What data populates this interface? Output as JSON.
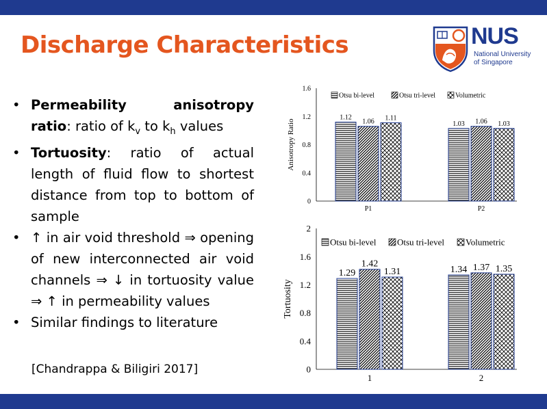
{
  "slide": {
    "title": "Discharge Characteristics",
    "logo": {
      "text": "NUS",
      "subtitle_line1": "National University",
      "subtitle_line2": "of Singapore"
    },
    "bullets": [
      {
        "bold": "Permeability anisotropy ratio",
        "rest": ": ratio of k",
        "sub1": "v",
        "mid": " to k",
        "sub2": "h",
        "end": " values"
      },
      {
        "bold": "Tortuosity",
        "rest": ": ratio of actual length of fluid flow to shortest distance from top to bottom of sample"
      },
      {
        "text": "↑ in air void threshold ⇒ opening of new interconnected air void channels ⇒ ↓ in tortuosity value ⇒ ↑ in permeability values"
      },
      {
        "text": "Similar findings to literature"
      }
    ],
    "citation": "[Chandrappa & Biligiri 2017]"
  },
  "chart_data": [
    {
      "type": "bar",
      "ylabel": "Anisotropy Ratio",
      "categories": [
        "P1",
        "P2"
      ],
      "series": [
        {
          "name": "Otsu bi-level",
          "values": [
            1.12,
            1.03
          ]
        },
        {
          "name": "Otsu tri-level",
          "values": [
            1.06,
            1.06
          ]
        },
        {
          "name": "Volumetric",
          "values": [
            1.11,
            1.03
          ]
        }
      ],
      "data_labels": [
        [
          "1.12",
          "1.06",
          "1.11"
        ],
        [
          "1.03",
          "1.06",
          "1.03"
        ]
      ],
      "yticks": [
        "0",
        "0.4",
        "0.8",
        "1.2",
        "1.6"
      ],
      "ylim": [
        0,
        1.6
      ],
      "legend": "top",
      "grid": false,
      "patterns": {
        "Otsu bi-level": "horizontal-lines",
        "Otsu tri-level": "diagonal-lines",
        "Volumetric": "crosshatch"
      }
    },
    {
      "type": "bar",
      "ylabel": "Tortuosity",
      "categories": [
        "1",
        "2"
      ],
      "series": [
        {
          "name": "Otsu bi-level",
          "values": [
            1.29,
            1.34
          ]
        },
        {
          "name": "Otsu tri-level",
          "values": [
            1.42,
            1.37
          ]
        },
        {
          "name": "Volumetric",
          "values": [
            1.31,
            1.35
          ]
        }
      ],
      "data_labels": [
        [
          "1.29",
          "1.42",
          "1.31"
        ],
        [
          "1.34",
          "1.37",
          "1.35"
        ]
      ],
      "yticks": [
        "0",
        "0.4",
        "0.8",
        "1.2",
        "1.6",
        "2"
      ],
      "ylim": [
        0,
        2
      ],
      "legend": "top",
      "grid": false,
      "patterns": {
        "Otsu bi-level": "horizontal-lines",
        "Otsu tri-level": "diagonal-lines",
        "Volumetric": "crosshatch"
      }
    }
  ],
  "colors": {
    "title": "#e4561f",
    "bars": "#1f3a8f",
    "logo_blue": "#1f3a8f",
    "logo_orange": "#e4561f"
  },
  "icons": {
    "logo": "nus-crest-icon"
  }
}
